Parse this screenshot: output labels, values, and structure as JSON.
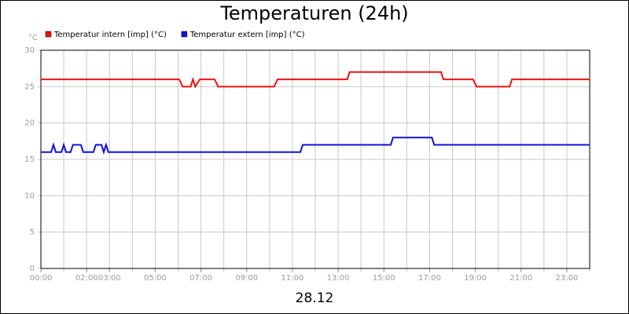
{
  "chart_data": {
    "type": "line",
    "title": "Temperaturen (24h)",
    "xlabel": "28.12",
    "ylabel": "°C",
    "xlim": [
      0,
      24
    ],
    "ylim": [
      0,
      30
    ],
    "yticks": [
      0,
      5,
      10,
      15,
      20,
      25,
      30
    ],
    "xticks": [
      {
        "value": 0,
        "label": "00:00"
      },
      {
        "value": 2,
        "label": "02:00"
      },
      {
        "value": 3,
        "label": "03:00"
      },
      {
        "value": 5,
        "label": "05:00"
      },
      {
        "value": 7,
        "label": "07:00"
      },
      {
        "value": 9,
        "label": "09:00"
      },
      {
        "value": 11,
        "label": "11:00"
      },
      {
        "value": 13,
        "label": "13:00"
      },
      {
        "value": 15,
        "label": "15:00"
      },
      {
        "value": 17,
        "label": "17:00"
      },
      {
        "value": 19,
        "label": "19:00"
      },
      {
        "value": 21,
        "label": "21:00"
      },
      {
        "value": 23,
        "label": "23:00"
      }
    ],
    "x_minor_ticks": [
      0,
      1,
      2,
      3,
      4,
      5,
      6,
      7,
      8,
      9,
      10,
      11,
      12,
      13,
      14,
      15,
      16,
      17,
      18,
      19,
      20,
      21,
      22,
      23,
      24
    ],
    "grid": true,
    "series": [
      {
        "name": "Temperatur intern [imp] (°C)",
        "color": "#ee1111",
        "x": [
          0,
          6.05,
          6.2,
          6.55,
          6.65,
          6.75,
          6.95,
          7.6,
          7.75,
          10.2,
          10.35,
          13.4,
          13.5,
          17.5,
          17.6,
          18.9,
          19.05,
          20.5,
          20.6,
          24
        ],
        "values": [
          26,
          26,
          25,
          25,
          26,
          25,
          26,
          26,
          25,
          25,
          26,
          26,
          27,
          27,
          26,
          26,
          25,
          25,
          26,
          26
        ]
      },
      {
        "name": "Temperatur extern [imp] (°C)",
        "color": "#1111dd",
        "x": [
          0,
          0.45,
          0.55,
          0.65,
          0.9,
          1.0,
          1.1,
          1.3,
          1.4,
          1.75,
          1.85,
          1.95,
          2.3,
          2.4,
          2.65,
          2.75,
          2.85,
          2.95,
          11.35,
          11.45,
          15.3,
          15.4,
          17.1,
          17.2,
          24
        ],
        "values": [
          16,
          16,
          17,
          16,
          16,
          17,
          16,
          16,
          17,
          17,
          16,
          16,
          16,
          17,
          17,
          16,
          17,
          16,
          16,
          17,
          17,
          18,
          18,
          17,
          17
        ]
      }
    ]
  }
}
